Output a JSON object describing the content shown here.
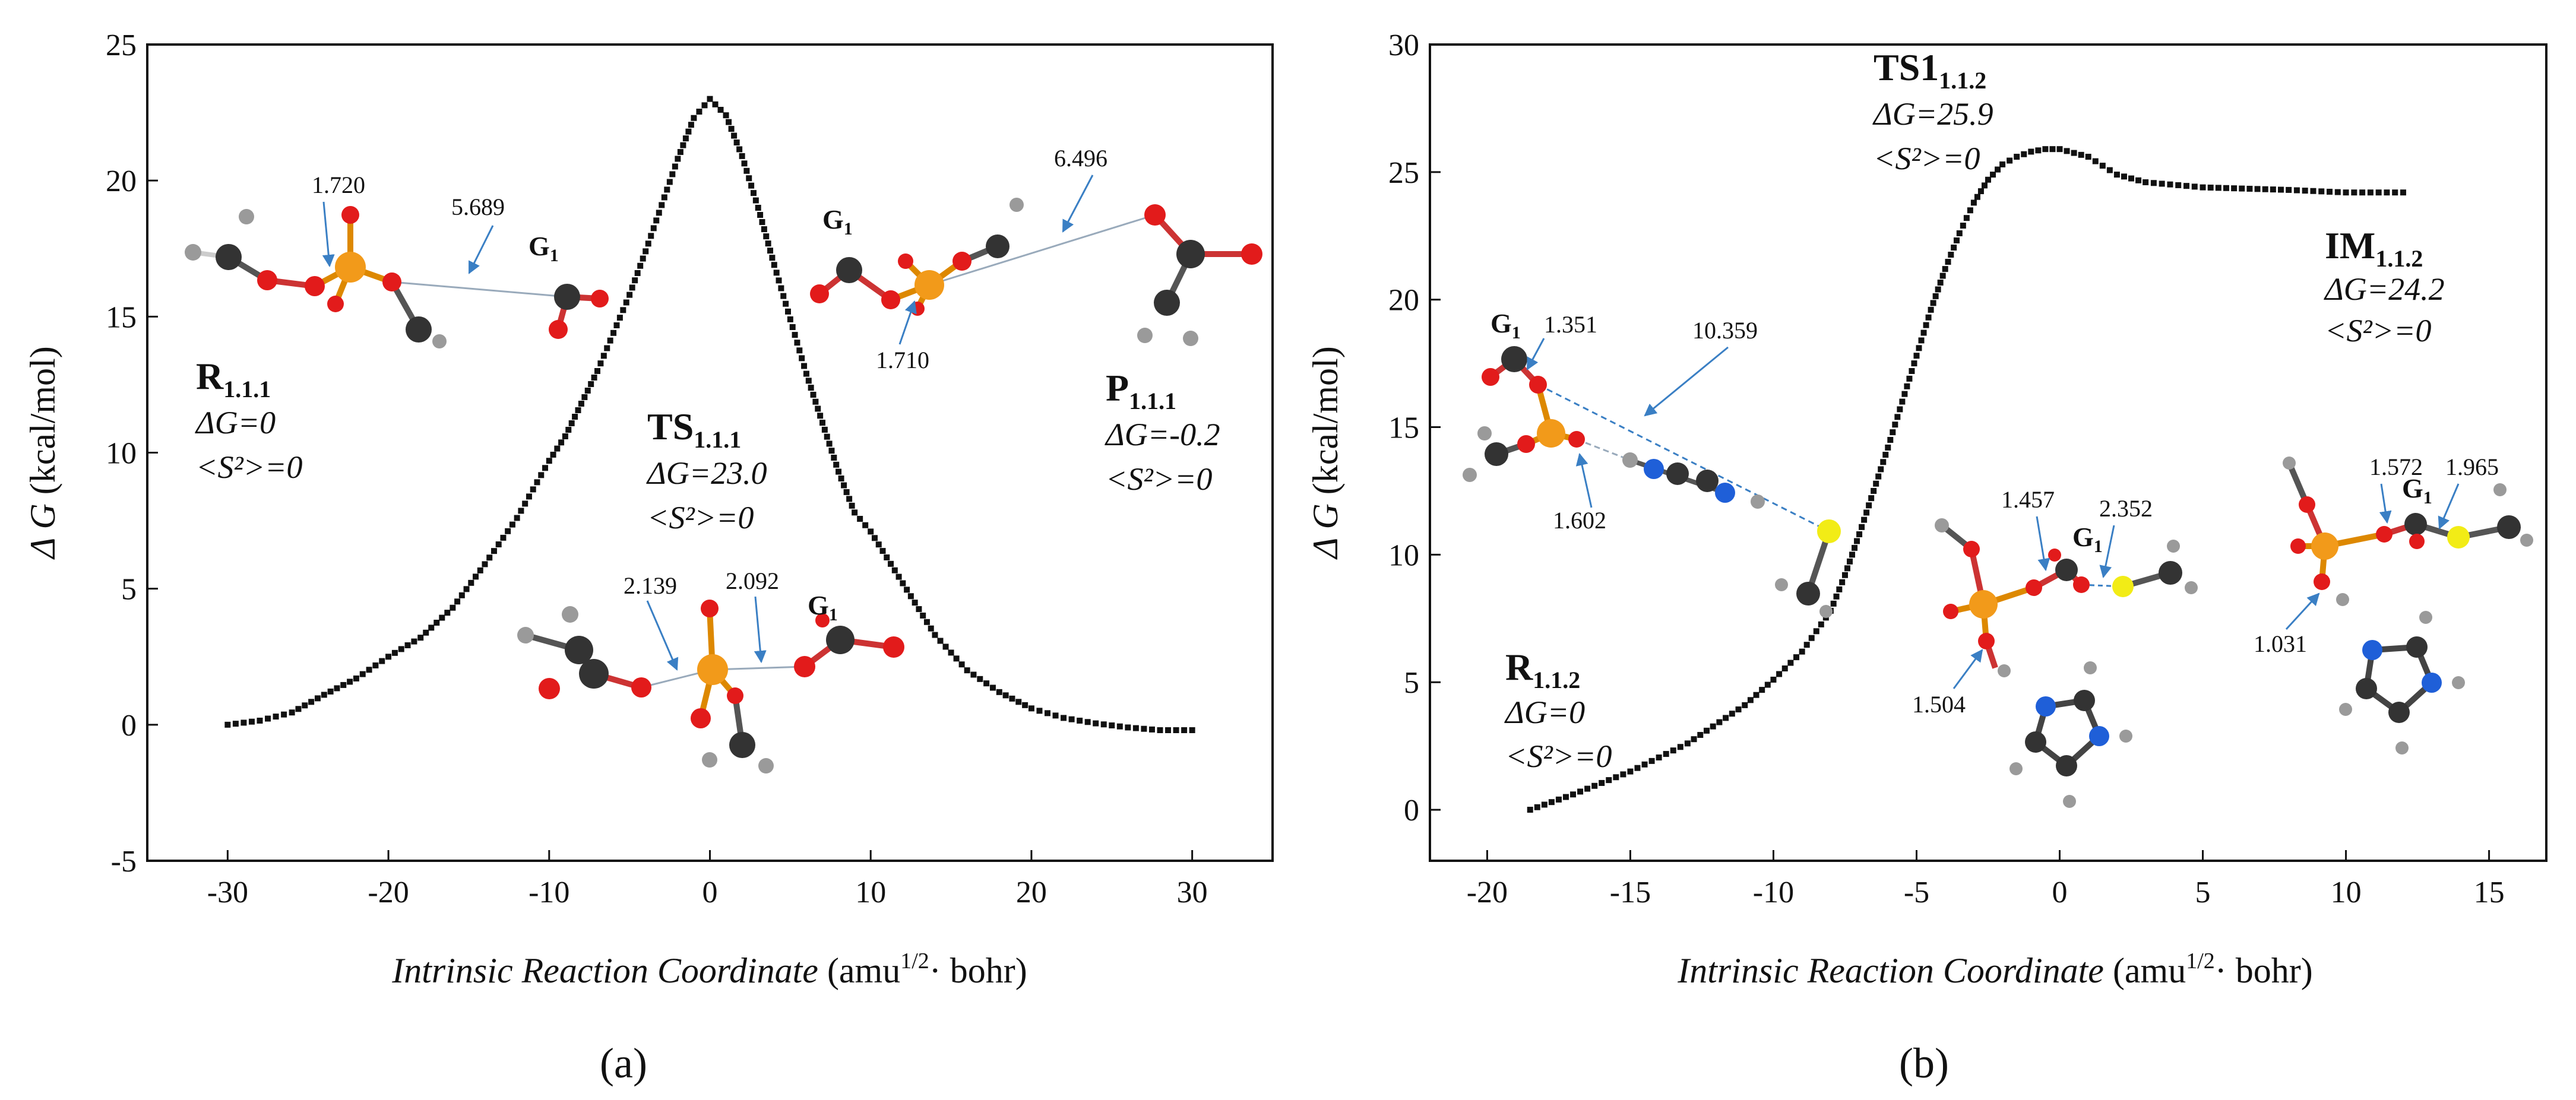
{
  "colors": {
    "curve": "#111111",
    "phosphorus": "#f29a1a",
    "oxygen": "#e21b1b",
    "carbon": "#333333",
    "hydrogen": "#9a9a9a",
    "nitrogen": "#1f5fd8",
    "sulfur": "#f2ec16",
    "arrow": "#3a7fc4"
  },
  "chart_data": [
    {
      "type": "scatter",
      "panel_label": "(a)",
      "title": "",
      "xlabel_italic": "Intrinsic Reaction Coordinate",
      "xlabel_unit_pre": "(amu",
      "xlabel_unit_sup": "1/2",
      "xlabel_unit_post": "· bohr)",
      "ylabel_italic": "Δ G",
      "ylabel_unit": "(kcal/mol)",
      "xlim": [
        -35,
        35
      ],
      "ylim": [
        -5,
        25
      ],
      "xticks": [
        -30,
        -20,
        -10,
        0,
        10,
        20,
        30
      ],
      "yticks": [
        -5,
        0,
        5,
        10,
        15,
        20,
        25
      ],
      "series": [
        {
          "name": "IRC",
          "x": [
            -30,
            -28,
            -26,
            -24,
            -22,
            -20,
            -18,
            -16,
            -14,
            -12,
            -10,
            -9,
            -8,
            -7,
            -6,
            -5,
            -4,
            -3,
            -2,
            -1,
            0,
            1,
            2,
            3,
            4,
            5,
            6,
            7,
            8,
            9,
            10,
            12,
            14,
            16,
            18,
            20,
            22,
            24,
            26,
            28,
            30
          ],
          "y": [
            0.0,
            0.15,
            0.45,
            1.1,
            1.7,
            2.5,
            3.2,
            4.3,
            5.9,
            7.6,
            9.7,
            10.6,
            11.8,
            13.0,
            14.4,
            15.8,
            17.4,
            19.1,
            20.8,
            22.3,
            23.0,
            22.4,
            20.9,
            19.0,
            16.9,
            14.9,
            12.9,
            11.1,
            9.3,
            7.8,
            7.1,
            5.2,
            3.3,
            2.0,
            1.2,
            0.6,
            0.25,
            0.05,
            -0.1,
            -0.2,
            -0.2
          ]
        }
      ],
      "states": [
        {
          "name": "R",
          "sub": "1.1.1",
          "dg": "ΔG=0",
          "spin": "<S²>=0"
        },
        {
          "name": "TS",
          "sub": "1.1.1",
          "dg": "ΔG=23.0",
          "spin": "<S²>=0"
        },
        {
          "name": "P",
          "sub": "1.1.1",
          "dg": "ΔG=-0.2",
          "spin": "<S²>=0"
        }
      ],
      "distance_labels": [
        "1.720",
        "5.689",
        "6.496",
        "1.710",
        "2.139",
        "2.092"
      ],
      "fragment_label": "G"
    },
    {
      "type": "scatter",
      "panel_label": "(b)",
      "title": "",
      "xlabel_italic": "Intrinsic Reaction Coordinate",
      "xlabel_unit_pre": "(amu",
      "xlabel_unit_sup": "1/2",
      "xlabel_unit_post": "· bohr)",
      "ylabel_italic": "Δ G",
      "ylabel_unit": "(kcal/mol)",
      "xlim": [
        -22,
        17
      ],
      "ylim": [
        -2,
        30
      ],
      "xticks": [
        -20,
        -15,
        -10,
        -5,
        0,
        5,
        10,
        15
      ],
      "yticks": [
        0,
        5,
        10,
        15,
        20,
        25,
        30
      ],
      "series": [
        {
          "name": "IRC",
          "x": [
            -18.5,
            -17,
            -15,
            -13,
            -11,
            -10,
            -9,
            -8,
            -7.5,
            -7,
            -6.5,
            -6,
            -5.5,
            -5,
            -4.5,
            -4,
            -3.5,
            -3,
            -2.5,
            -2,
            -1.5,
            -1,
            -0.5,
            0,
            1,
            2,
            3,
            5,
            8,
            10,
            12
          ],
          "y": [
            0.0,
            0.6,
            1.5,
            2.6,
            4.1,
            5.1,
            6.2,
            7.8,
            9.2,
            10.8,
            12.5,
            14.2,
            16.0,
            17.8,
            19.6,
            21.2,
            22.6,
            23.8,
            24.7,
            25.3,
            25.6,
            25.8,
            25.9,
            25.9,
            25.6,
            24.9,
            24.6,
            24.4,
            24.3,
            24.2,
            24.2
          ]
        }
      ],
      "states": [
        {
          "name": "R",
          "sub": "1.1.2",
          "dg": "ΔG=0",
          "spin": "<S²>=0"
        },
        {
          "name": "TS1",
          "sub": "1.1.2",
          "dg": "ΔG=25.9",
          "spin": "<S²>=0"
        },
        {
          "name": "IM",
          "sub": "1.1.2",
          "dg": "ΔG=24.2",
          "spin": "<S²>=0"
        }
      ],
      "distance_labels": [
        "1.351",
        "10.359",
        "1.602",
        "1.457",
        "2.352",
        "1.504",
        "1.572",
        "1.965",
        "1.031"
      ],
      "fragment_label": "G"
    }
  ]
}
